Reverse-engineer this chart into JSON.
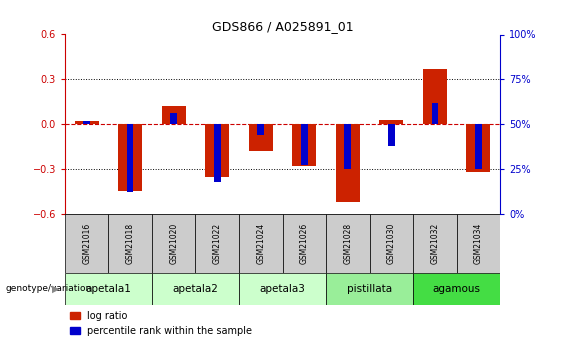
{
  "title": "GDS866 / A025891_01",
  "samples": [
    "GSM21016",
    "GSM21018",
    "GSM21020",
    "GSM21022",
    "GSM21024",
    "GSM21026",
    "GSM21028",
    "GSM21030",
    "GSM21032",
    "GSM21034"
  ],
  "log_ratios": [
    0.02,
    -0.45,
    0.12,
    -0.35,
    -0.18,
    -0.28,
    -0.52,
    0.03,
    0.37,
    -0.32
  ],
  "percentile_ranks": [
    52,
    12,
    56,
    18,
    44,
    27,
    25,
    38,
    62,
    25
  ],
  "ylim_left": [
    -0.6,
    0.6
  ],
  "ylim_right": [
    0,
    100
  ],
  "yticks_left": [
    -0.6,
    -0.3,
    0.0,
    0.3,
    0.6
  ],
  "yticks_right": [
    0,
    25,
    50,
    75,
    100
  ],
  "left_tick_color": "#cc0000",
  "right_tick_color": "#0000cc",
  "bar_color_red": "#cc2200",
  "bar_color_blue": "#0000cc",
  "dotted_line_color": "black",
  "zero_line_color": "#cc0000",
  "groups": [
    {
      "label": "apetala1",
      "samples": [
        0,
        1
      ],
      "color": "#ccffcc"
    },
    {
      "label": "apetala2",
      "samples": [
        2,
        3
      ],
      "color": "#ccffcc"
    },
    {
      "label": "apetala3",
      "samples": [
        4,
        5
      ],
      "color": "#ccffcc"
    },
    {
      "label": "pistillata",
      "samples": [
        6,
        7
      ],
      "color": "#99ee99"
    },
    {
      "label": "agamous",
      "samples": [
        8,
        9
      ],
      "color": "#44dd44"
    }
  ],
  "legend_red_label": "log ratio",
  "legend_blue_label": "percentile rank within the sample",
  "genotype_label": "genotype/variation",
  "header_color": "#cccccc",
  "red_bar_width": 0.55,
  "blue_bar_width": 0.15
}
